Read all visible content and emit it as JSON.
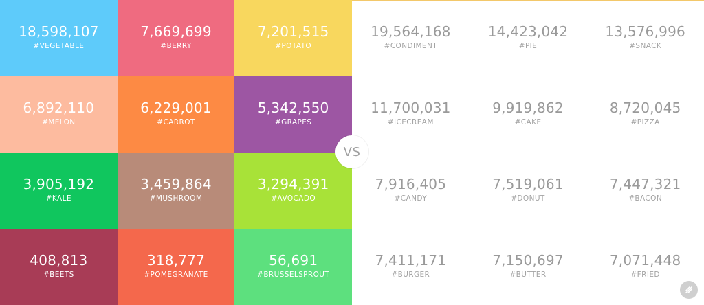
{
  "vs_label": "VS",
  "colors": {
    "top_accent": "#f3c86a",
    "right_number": "#9a9a9a",
    "right_tag": "#a3a3a3"
  },
  "chart_data": {
    "type": "table",
    "title": "",
    "left": [
      {
        "value": "18,598,107",
        "tag": "#VEGETABLE",
        "color": "#5ecbfa"
      },
      {
        "value": "7,669,699",
        "tag": "#BERRY",
        "color": "#ef6b80"
      },
      {
        "value": "7,201,515",
        "tag": "#POTATO",
        "color": "#f8d75e"
      },
      {
        "value": "6,892,110",
        "tag": "#MELON",
        "color": "#fdbb9f"
      },
      {
        "value": "6,229,001",
        "tag": "#CARROT",
        "color": "#fd8a44"
      },
      {
        "value": "5,342,550",
        "tag": "#GRAPES",
        "color": "#9d56a3"
      },
      {
        "value": "3,905,192",
        "tag": "#KALE",
        "color": "#10c65e"
      },
      {
        "value": "3,459,864",
        "tag": "#MUSHROOM",
        "color": "#b88b79"
      },
      {
        "value": "3,294,391",
        "tag": "#AVOCADO",
        "color": "#a8e238"
      },
      {
        "value": "408,813",
        "tag": "#BEETS",
        "color": "#a83c56"
      },
      {
        "value": "318,777",
        "tag": "#POMEGRANATE",
        "color": "#f4684c"
      },
      {
        "value": "56,691",
        "tag": "#BRUSSELSPROUT",
        "color": "#5de07e"
      }
    ],
    "right": [
      {
        "value": "19,564,168",
        "tag": "#CONDIMENT"
      },
      {
        "value": "14,423,042",
        "tag": "#PIE"
      },
      {
        "value": "13,576,996",
        "tag": "#SNACK"
      },
      {
        "value": "11,700,031",
        "tag": "#ICECREAM"
      },
      {
        "value": "9,919,862",
        "tag": "#CAKE"
      },
      {
        "value": "8,720,045",
        "tag": "#PIZZA"
      },
      {
        "value": "7,916,405",
        "tag": "#CANDY"
      },
      {
        "value": "7,519,061",
        "tag": "#DONUT"
      },
      {
        "value": "7,447,321",
        "tag": "#BACON"
      },
      {
        "value": "7,411,171",
        "tag": "#BURGER"
      },
      {
        "value": "7,150,697",
        "tag": "#BUTTER"
      },
      {
        "value": "7,071,448",
        "tag": "#FRIED"
      }
    ]
  }
}
